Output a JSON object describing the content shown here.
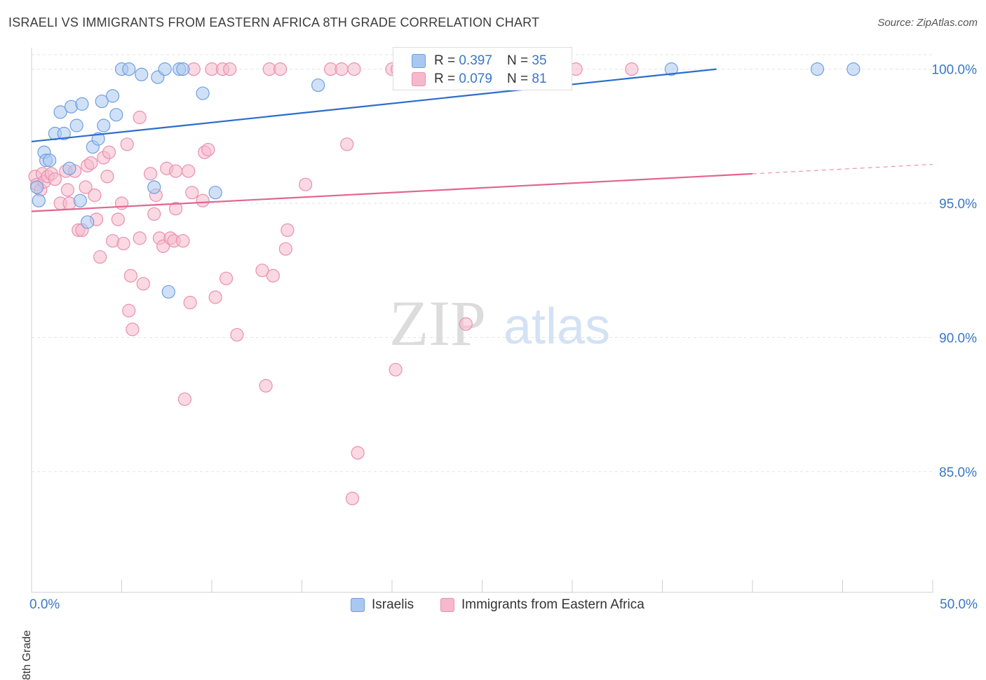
{
  "title": "ISRAELI VS IMMIGRANTS FROM EASTERN AFRICA 8TH GRADE CORRELATION CHART",
  "source": "Source: ZipAtlas.com",
  "watermark": {
    "zip": "ZIP",
    "atlas": "atlas"
  },
  "colors": {
    "israelis_fill": "#a9c8f0",
    "israelis_stroke": "#6f9fdf",
    "israelis_line": "#2a6dcc",
    "eafrica_fill": "#f6b9cc",
    "eafrica_stroke": "#ea8fae",
    "eafrica_line": "#e2658f",
    "tick_label": "#3a76c8",
    "grid": "#e3e3e3"
  },
  "stats": {
    "israelis": {
      "r_label": "R = ",
      "r": "0.397",
      "n_label": "N = ",
      "n": "35"
    },
    "eafrica": {
      "r_label": "R = ",
      "r": "0.079",
      "n_label": "N = ",
      "n": "81"
    }
  },
  "chart_data": {
    "type": "scatter",
    "title": "ISRAELI VS IMMIGRANTS FROM EASTERN AFRICA 8TH GRADE CORRELATION CHART",
    "xlabel": "",
    "ylabel": "8th Grade",
    "xlim": [
      0,
      50
    ],
    "ylim": [
      80.5,
      100.8
    ],
    "x_tick_labels": [
      "0.0%",
      "50.0%"
    ],
    "y_ticks": [
      85,
      90,
      95,
      100
    ],
    "y_tick_labels": [
      "85.0%",
      "90.0%",
      "95.0%",
      "100.0%"
    ],
    "series": [
      {
        "name": "Israelis",
        "r": 0.397,
        "n": 35,
        "trend": {
          "x0": 0,
          "y0": 97.3,
          "x1": 38,
          "y1": 100.0,
          "dash_to_x": 0
        },
        "points": [
          [
            0.3,
            95.6
          ],
          [
            0.4,
            95.1
          ],
          [
            0.7,
            96.9
          ],
          [
            0.8,
            96.6
          ],
          [
            1.0,
            96.6
          ],
          [
            1.3,
            97.6
          ],
          [
            1.6,
            98.4
          ],
          [
            1.8,
            97.6
          ],
          [
            2.1,
            96.3
          ],
          [
            2.2,
            98.6
          ],
          [
            2.5,
            97.9
          ],
          [
            2.7,
            95.1
          ],
          [
            2.8,
            98.7
          ],
          [
            3.1,
            94.3
          ],
          [
            3.4,
            97.1
          ],
          [
            3.7,
            97.4
          ],
          [
            3.9,
            98.8
          ],
          [
            4.0,
            97.9
          ],
          [
            4.5,
            99.0
          ],
          [
            4.7,
            98.3
          ],
          [
            5.0,
            100.0
          ],
          [
            5.4,
            100.0
          ],
          [
            6.1,
            99.8
          ],
          [
            6.8,
            95.6
          ],
          [
            7.0,
            99.7
          ],
          [
            7.4,
            100.0
          ],
          [
            7.6,
            91.7
          ],
          [
            8.2,
            100.0
          ],
          [
            8.4,
            100.0
          ],
          [
            9.5,
            99.1
          ],
          [
            10.2,
            95.4
          ],
          [
            15.9,
            99.4
          ],
          [
            35.5,
            100.0
          ],
          [
            43.6,
            100.0
          ],
          [
            45.6,
            100.0
          ]
        ]
      },
      {
        "name": "Immigrants from Eastern Africa",
        "r": 0.079,
        "n": 81,
        "trend": {
          "x0": 0,
          "y0": 94.7,
          "x1": 40,
          "y1": 96.1,
          "dash_to_x": 50
        },
        "points": [
          [
            0.2,
            96.0
          ],
          [
            0.3,
            95.7
          ],
          [
            0.5,
            95.5
          ],
          [
            0.6,
            96.1
          ],
          [
            0.7,
            95.8
          ],
          [
            0.9,
            96.0
          ],
          [
            1.1,
            96.1
          ],
          [
            1.3,
            95.9
          ],
          [
            1.6,
            95.0
          ],
          [
            1.9,
            96.2
          ],
          [
            2.0,
            95.5
          ],
          [
            2.1,
            95.0
          ],
          [
            2.4,
            96.2
          ],
          [
            2.6,
            94.0
          ],
          [
            2.8,
            94.0
          ],
          [
            3.0,
            95.6
          ],
          [
            3.1,
            96.4
          ],
          [
            3.3,
            96.5
          ],
          [
            3.5,
            95.3
          ],
          [
            3.6,
            94.4
          ],
          [
            3.8,
            93.0
          ],
          [
            4.0,
            96.7
          ],
          [
            4.2,
            96.0
          ],
          [
            4.3,
            96.9
          ],
          [
            4.5,
            93.6
          ],
          [
            4.8,
            94.4
          ],
          [
            5.0,
            95.0
          ],
          [
            5.1,
            93.5
          ],
          [
            5.3,
            97.2
          ],
          [
            5.4,
            91.0
          ],
          [
            5.5,
            92.3
          ],
          [
            5.6,
            90.3
          ],
          [
            6.0,
            93.7
          ],
          [
            6.0,
            98.2
          ],
          [
            6.2,
            92.0
          ],
          [
            6.6,
            96.1
          ],
          [
            6.8,
            94.6
          ],
          [
            6.9,
            95.3
          ],
          [
            7.1,
            93.7
          ],
          [
            7.3,
            93.4
          ],
          [
            7.5,
            96.3
          ],
          [
            7.7,
            93.7
          ],
          [
            7.9,
            93.6
          ],
          [
            8.0,
            94.8
          ],
          [
            8.0,
            96.2
          ],
          [
            8.4,
            93.6
          ],
          [
            8.5,
            87.7
          ],
          [
            8.7,
            96.2
          ],
          [
            8.8,
            91.3
          ],
          [
            8.9,
            95.4
          ],
          [
            9.0,
            100.0
          ],
          [
            9.5,
            95.1
          ],
          [
            9.6,
            96.9
          ],
          [
            9.8,
            97.0
          ],
          [
            10.0,
            100.0
          ],
          [
            10.2,
            91.5
          ],
          [
            10.6,
            100.0
          ],
          [
            10.8,
            92.2
          ],
          [
            11.0,
            100.0
          ],
          [
            11.4,
            90.1
          ],
          [
            12.8,
            92.5
          ],
          [
            13.0,
            88.2
          ],
          [
            13.2,
            100.0
          ],
          [
            13.4,
            92.3
          ],
          [
            13.8,
            100.0
          ],
          [
            14.1,
            93.3
          ],
          [
            14.2,
            94.0
          ],
          [
            15.2,
            95.7
          ],
          [
            16.6,
            100.0
          ],
          [
            17.2,
            100.0
          ],
          [
            17.5,
            97.2
          ],
          [
            17.8,
            84.0
          ],
          [
            17.9,
            100.0
          ],
          [
            18.1,
            85.7
          ],
          [
            20.0,
            100.0
          ],
          [
            20.2,
            88.8
          ],
          [
            20.3,
            100.0
          ],
          [
            21.1,
            100.0
          ],
          [
            24.1,
            90.5
          ],
          [
            30.2,
            100.0
          ],
          [
            33.3,
            100.0
          ]
        ]
      }
    ],
    "legend": [
      "Israelis",
      "Immigrants from Eastern Africa"
    ],
    "legend_placement": "bottom-center"
  }
}
